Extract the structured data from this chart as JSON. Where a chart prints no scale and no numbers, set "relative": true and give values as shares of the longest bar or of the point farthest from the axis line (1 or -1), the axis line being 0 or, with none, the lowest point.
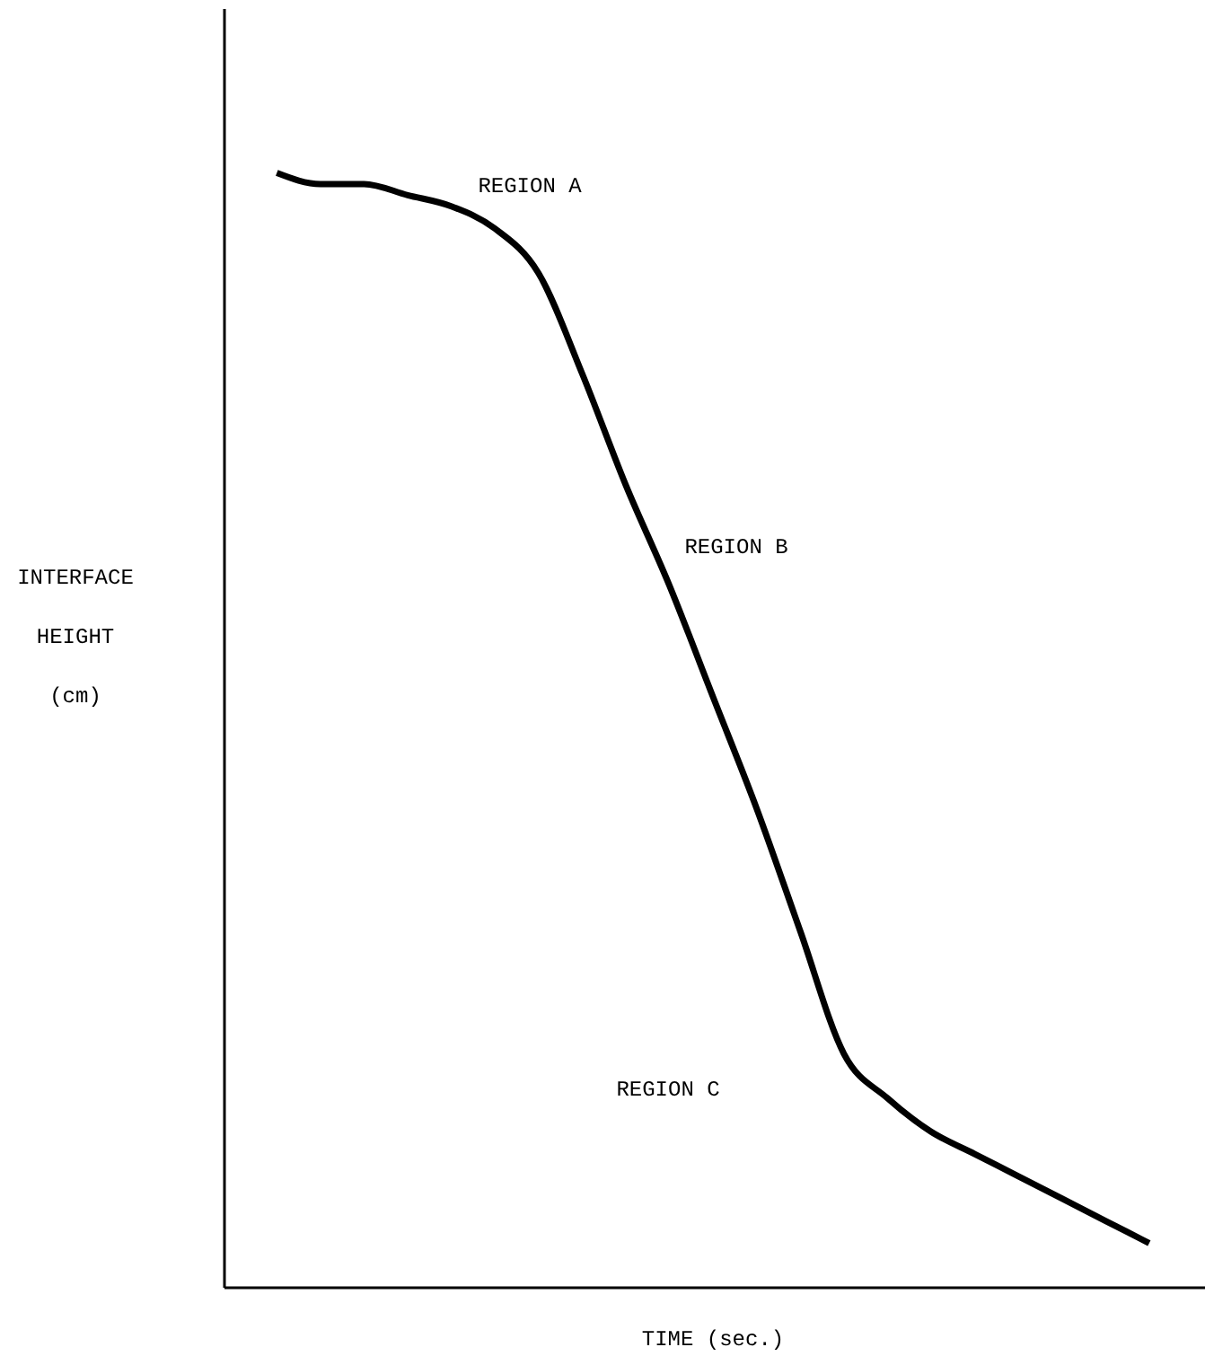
{
  "chart_data": {
    "type": "line",
    "relative": true,
    "xlabel": "TIME (sec.)",
    "ylabel": "INTERFACE HEIGHT (cm)",
    "categories": [
      null,
      null,
      null,
      null,
      null,
      null,
      null,
      null,
      null,
      null,
      null,
      null,
      null,
      null,
      null,
      null,
      null,
      null,
      null,
      null,
      null
    ],
    "series": [
      {
        "color": "#000000",
        "values": [
          1,
          0.99,
          0.99,
          0.98,
          0.97,
          0.95,
          0.91,
          0.82,
          0.72,
          0.63,
          0.53,
          0.43,
          0.32,
          0.21,
          0.17,
          0.14,
          0.12,
          0.1,
          0.08,
          0.06,
          0.04
        ]
      }
    ],
    "annotations": [
      "REGION A",
      "REGION B",
      "REGION C"
    ],
    "marker": "none",
    "line_style": "solid",
    "grid": false,
    "legend": false
  }
}
